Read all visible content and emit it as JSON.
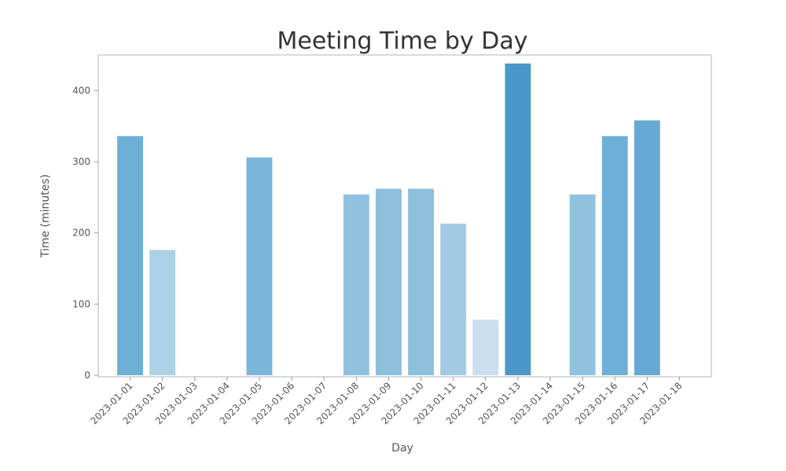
{
  "chart_data": {
    "type": "bar",
    "title": "Meeting Time by Day",
    "xlabel": "Day",
    "ylabel": "Time (minutes)",
    "categories": [
      "2023-01-01",
      "2023-01-02",
      "2023-01-03",
      "2023-01-04",
      "2023-01-05",
      "2023-01-06",
      "2023-01-07",
      "2023-01-08",
      "2023-01-09",
      "2023-01-10",
      "2023-01-11",
      "2023-01-12",
      "2023-01-13",
      "2023-01-14",
      "2023-01-15",
      "2023-01-16",
      "2023-01-17",
      "2023-01-18"
    ],
    "values": [
      336,
      176,
      0,
      0,
      306,
      0,
      0,
      254,
      262,
      262,
      213,
      78,
      438,
      0,
      254,
      336,
      358,
      0
    ],
    "ylim": [
      0,
      450
    ],
    "yticks": [
      0,
      100,
      200,
      300,
      400
    ],
    "colormap": "Blues",
    "grid": false
  }
}
